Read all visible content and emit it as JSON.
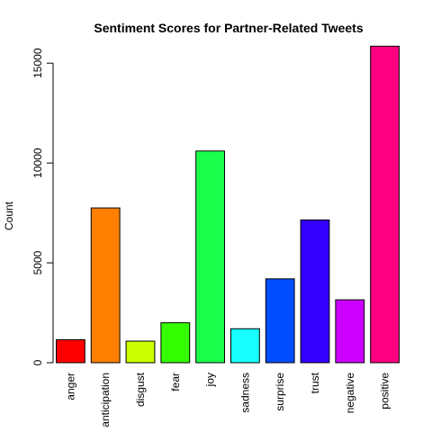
{
  "chart_data": {
    "type": "bar",
    "title": "Sentiment Scores for Partner-Related Tweets",
    "xlabel": "",
    "ylabel": "Count",
    "ylim": [
      0,
      16000
    ],
    "yticks": [
      0,
      5000,
      10000,
      15000
    ],
    "grid": false,
    "categories": [
      "anger",
      "anticipation",
      "disgust",
      "fear",
      "joy",
      "sadness",
      "surprise",
      "trust",
      "negative",
      "positive"
    ],
    "values": [
      1150,
      7750,
      1080,
      2000,
      10600,
      1700,
      4200,
      7150,
      3150,
      15850
    ],
    "colors": [
      "#FF0000",
      "#FF8000",
      "#CCFF00",
      "#33FF00",
      "#19FF4C",
      "#19FFFF",
      "#004CFF",
      "#3300FF",
      "#CC00FF",
      "#FF0080"
    ]
  }
}
